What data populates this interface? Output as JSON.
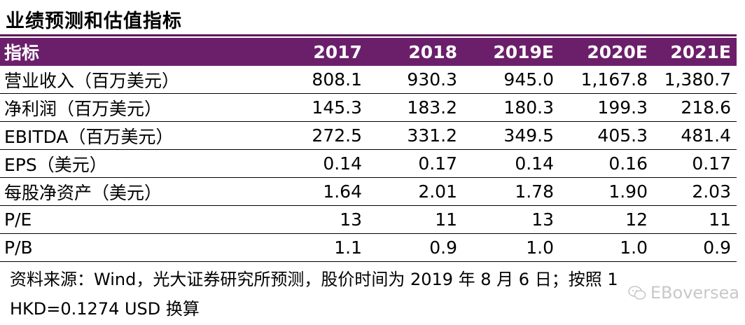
{
  "title": "业绩预测和估值指标",
  "table": {
    "headers": [
      "指标",
      "2017",
      "2018",
      "2019E",
      "2020E",
      "2021E"
    ],
    "rows": [
      {
        "label": "营业收入（百万美元）",
        "values": [
          "808.1",
          "930.3",
          "945.0",
          "1,167.8",
          "1,380.7"
        ]
      },
      {
        "label": "净利润（百万美元）",
        "values": [
          "145.3",
          "183.2",
          "180.3",
          "199.3",
          "218.6"
        ]
      },
      {
        "label": "EBITDA（百万美元）",
        "values": [
          "272.5",
          "331.2",
          "349.5",
          "405.3",
          "481.4"
        ]
      },
      {
        "label": "EPS（美元）",
        "values": [
          "0.14",
          "0.17",
          "0.14",
          "0.16",
          "0.17"
        ]
      },
      {
        "label": "每股净资产（美元）",
        "values": [
          "1.64",
          "2.01",
          "1.78",
          "1.90",
          "2.03"
        ]
      },
      {
        "label": "P/E",
        "values": [
          "13",
          "11",
          "13",
          "12",
          "11"
        ]
      },
      {
        "label": "P/B",
        "values": [
          "1.1",
          "0.9",
          "1.0",
          "1.0",
          "0.9"
        ]
      }
    ]
  },
  "source_line1": "资料来源：Wind，光大证券研究所预测，股价时间为 2019 年 8 月 6 日；按照 1",
  "source_line2": "HKD=0.1274 USD 换算",
  "watermark": "EBoversea",
  "colors": {
    "header_bg": "#6b1f6a",
    "watermark": "#c8c8c8"
  }
}
